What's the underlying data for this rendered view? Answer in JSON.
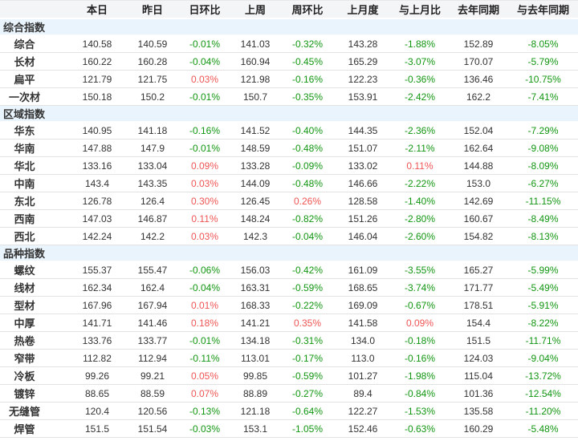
{
  "colors": {
    "positive_change": "#f05555",
    "negative_change": "#129612",
    "header_bg": "#f4f5f7",
    "group_row_bg": "#e9f4fc"
  },
  "table": {
    "headers": [
      "",
      "本日",
      "昨日",
      "日环比",
      "上周",
      "周环比",
      "上月度",
      "与上月比",
      "去年同期",
      "与去年同期"
    ],
    "groups": [
      {
        "label": "综合指数",
        "rows": [
          {
            "label": "综合",
            "values": [
              "140.58",
              "140.59",
              "-0.01%",
              "141.03",
              "-0.32%",
              "143.28",
              "-1.88%",
              "152.89",
              "-8.05%"
            ]
          },
          {
            "label": "长材",
            "values": [
              "160.22",
              "160.28",
              "-0.04%",
              "160.94",
              "-0.45%",
              "165.29",
              "-3.07%",
              "170.07",
              "-5.79%"
            ]
          },
          {
            "label": "扁平",
            "values": [
              "121.79",
              "121.75",
              "0.03%",
              "121.98",
              "-0.16%",
              "122.23",
              "-0.36%",
              "136.46",
              "-10.75%"
            ]
          },
          {
            "label": "一次材",
            "values": [
              "150.18",
              "150.2",
              "-0.01%",
              "150.7",
              "-0.35%",
              "153.91",
              "-2.42%",
              "162.2",
              "-7.41%"
            ]
          }
        ]
      },
      {
        "label": "区域指数",
        "rows": [
          {
            "label": "华东",
            "values": [
              "140.95",
              "141.18",
              "-0.16%",
              "141.52",
              "-0.40%",
              "144.35",
              "-2.36%",
              "152.04",
              "-7.29%"
            ]
          },
          {
            "label": "华南",
            "values": [
              "147.88",
              "147.9",
              "-0.01%",
              "148.59",
              "-0.48%",
              "151.07",
              "-2.11%",
              "162.64",
              "-9.08%"
            ]
          },
          {
            "label": "华北",
            "values": [
              "133.16",
              "133.04",
              "0.09%",
              "133.28",
              "-0.09%",
              "133.02",
              "0.11%",
              "144.88",
              "-8.09%"
            ]
          },
          {
            "label": "中南",
            "values": [
              "143.4",
              "143.35",
              "0.03%",
              "144.09",
              "-0.48%",
              "146.66",
              "-2.22%",
              "153.0",
              "-6.27%"
            ]
          },
          {
            "label": "东北",
            "values": [
              "126.78",
              "126.4",
              "0.30%",
              "126.45",
              "0.26%",
              "128.58",
              "-1.40%",
              "142.69",
              "-11.15%"
            ]
          },
          {
            "label": "西南",
            "values": [
              "147.03",
              "146.87",
              "0.11%",
              "148.24",
              "-0.82%",
              "151.26",
              "-2.80%",
              "160.67",
              "-8.49%"
            ]
          },
          {
            "label": "西北",
            "values": [
              "142.24",
              "142.2",
              "0.03%",
              "142.3",
              "-0.04%",
              "146.04",
              "-2.60%",
              "154.82",
              "-8.13%"
            ]
          }
        ]
      },
      {
        "label": "品种指数",
        "rows": [
          {
            "label": "螺纹",
            "values": [
              "155.37",
              "155.47",
              "-0.06%",
              "156.03",
              "-0.42%",
              "161.09",
              "-3.55%",
              "165.27",
              "-5.99%"
            ]
          },
          {
            "label": "线材",
            "values": [
              "162.34",
              "162.4",
              "-0.04%",
              "163.31",
              "-0.59%",
              "168.65",
              "-3.74%",
              "171.77",
              "-5.49%"
            ]
          },
          {
            "label": "型材",
            "values": [
              "167.96",
              "167.94",
              "0.01%",
              "168.33",
              "-0.22%",
              "169.09",
              "-0.67%",
              "178.51",
              "-5.91%"
            ]
          },
          {
            "label": "中厚",
            "values": [
              "141.71",
              "141.46",
              "0.18%",
              "141.21",
              "0.35%",
              "141.58",
              "0.09%",
              "154.4",
              "-8.22%"
            ]
          },
          {
            "label": "热卷",
            "values": [
              "133.76",
              "133.77",
              "-0.01%",
              "134.18",
              "-0.31%",
              "134.0",
              "-0.18%",
              "151.5",
              "-11.71%"
            ]
          },
          {
            "label": "窄带",
            "values": [
              "112.82",
              "112.94",
              "-0.11%",
              "113.01",
              "-0.17%",
              "113.0",
              "-0.16%",
              "124.03",
              "-9.04%"
            ]
          },
          {
            "label": "冷板",
            "values": [
              "99.26",
              "99.21",
              "0.05%",
              "99.85",
              "-0.59%",
              "101.27",
              "-1.98%",
              "115.04",
              "-13.72%"
            ]
          },
          {
            "label": "镀锌",
            "values": [
              "88.65",
              "88.59",
              "0.07%",
              "88.89",
              "-0.27%",
              "89.4",
              "-0.84%",
              "101.36",
              "-12.54%"
            ]
          },
          {
            "label": "无缝管",
            "values": [
              "120.4",
              "120.56",
              "-0.13%",
              "121.18",
              "-0.64%",
              "122.27",
              "-1.53%",
              "135.58",
              "-11.20%"
            ]
          },
          {
            "label": "焊管",
            "values": [
              "151.5",
              "151.54",
              "-0.03%",
              "153.1",
              "-1.05%",
              "152.46",
              "-0.63%",
              "160.29",
              "-5.48%"
            ]
          }
        ]
      }
    ]
  }
}
